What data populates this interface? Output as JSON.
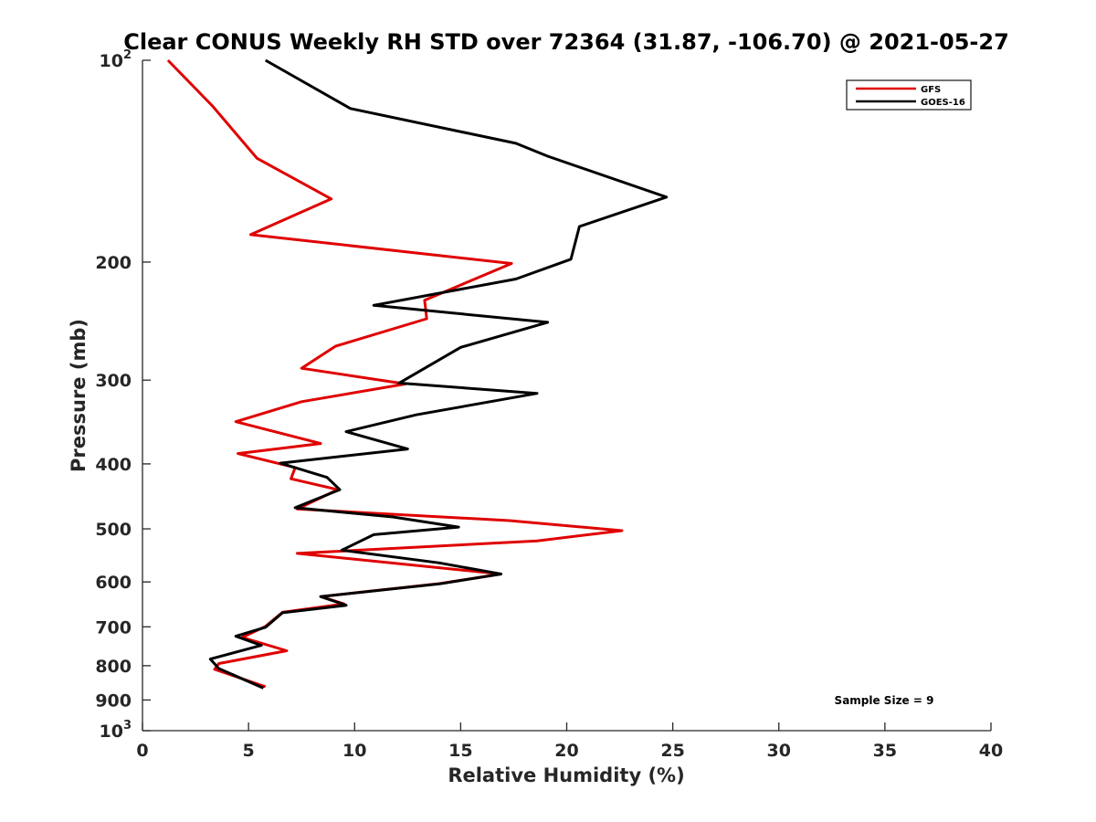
{
  "chart_data": {
    "type": "line",
    "title": "Clear CONUS Weekly RH STD over 72364 (31.87, -106.70) @ 2021-05-27",
    "xlabel": "Relative Humidity (%)",
    "ylabel": "Pressure (mb)",
    "xlim": [
      0,
      40
    ],
    "ylim": [
      100,
      1000
    ],
    "y_scale": "log",
    "y_reversed": true,
    "grid": false,
    "legend_position": "top-right",
    "x_ticks": [
      "0",
      "5",
      "10",
      "15",
      "20",
      "25",
      "30",
      "35",
      "40"
    ],
    "x_tick_values": [
      0,
      5,
      10,
      15,
      20,
      25,
      30,
      35,
      40
    ],
    "y_ticks": [
      {
        "value": 100,
        "base": "10",
        "exp": "2"
      },
      {
        "value": 200,
        "base": "200",
        "exp": ""
      },
      {
        "value": 300,
        "base": "300",
        "exp": ""
      },
      {
        "value": 400,
        "base": "400",
        "exp": ""
      },
      {
        "value": 500,
        "base": "500",
        "exp": ""
      },
      {
        "value": 600,
        "base": "600",
        "exp": ""
      },
      {
        "value": 700,
        "base": "700",
        "exp": ""
      },
      {
        "value": 800,
        "base": "800",
        "exp": ""
      },
      {
        "value": 900,
        "base": "900",
        "exp": ""
      },
      {
        "value": 1000,
        "base": "10",
        "exp": "3"
      }
    ],
    "annotation": "Sample Size = 9",
    "series": [
      {
        "name": "GFS",
        "color": "#e00000",
        "x": [
          1.2,
          3.3,
          5.4,
          8.9,
          5.1,
          17.4,
          13.3,
          13.4,
          9.1,
          7.5,
          12.4,
          7.5,
          4.4,
          8.4,
          4.5,
          7.2,
          7.0,
          9.2,
          7.3,
          17.3,
          22.6,
          18.6,
          7.3,
          16.9,
          13.9,
          8.4,
          9.5,
          6.6,
          5.8,
          4.7,
          6.8,
          3.6,
          3.4,
          5.8
        ],
        "y": [
          100,
          117,
          140,
          161,
          182,
          201,
          228,
          243,
          267,
          288,
          304,
          323,
          346,
          373,
          386,
          405,
          421,
          437,
          467,
          486,
          503,
          521,
          544,
          584,
          604,
          631,
          647,
          666,
          699,
          726,
          760,
          794,
          810,
          860
        ]
      },
      {
        "name": "GOES-16",
        "color": "#000000",
        "x": [
          5.8,
          9.8,
          17.6,
          19.1,
          24.7,
          20.6,
          20.2,
          17.6,
          10.9,
          19.1,
          15.0,
          12.1,
          18.6,
          12.9,
          9.6,
          12.5,
          6.5,
          8.7,
          9.3,
          7.2,
          11.8,
          14.9,
          10.9,
          9.4,
          14.0,
          16.9,
          14.0,
          8.4,
          9.6,
          6.6,
          5.8,
          4.4,
          5.6,
          3.2,
          3.6,
          5.7
        ],
        "y": [
          100,
          118,
          133,
          139,
          160,
          177,
          198,
          212,
          232,
          246,
          268,
          303,
          314,
          338,
          358,
          380,
          399,
          419,
          437,
          465,
          480,
          497,
          510,
          538,
          562,
          584,
          604,
          631,
          650,
          667,
          701,
          723,
          746,
          782,
          808,
          864
        ]
      }
    ]
  }
}
